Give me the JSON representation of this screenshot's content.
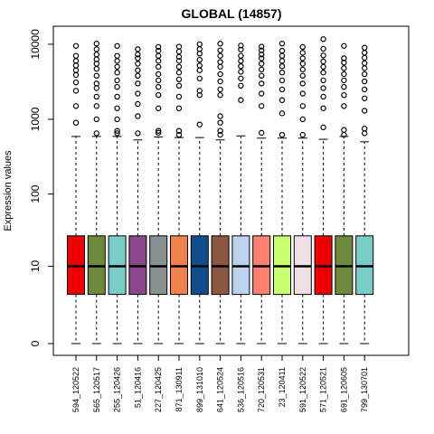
{
  "chart_data": {
    "type": "box",
    "title": "GLOBAL (14857)",
    "ylabel": "Expression values",
    "xlabel": "",
    "y_scale": "log1p",
    "yticks": [
      0,
      10,
      100,
      1000,
      10000
    ],
    "ytick_labels": [
      "0",
      "10",
      "100",
      "1000",
      "10000"
    ],
    "legend": "none",
    "grid": false,
    "categories": [
      "594_120522",
      "565_120517",
      "255_120426",
      "51_120416",
      "227_120425",
      "871_130911",
      "899_131010",
      "641_120524",
      "536_120516",
      "720_120531",
      "23_120411",
      "591_120522",
      "571_120521",
      "691_120605",
      "799_130701"
    ],
    "colors": [
      "#ee0000",
      "#6e8b3d",
      "#7accc8",
      "#8b4789",
      "#8a9193",
      "#f0804c",
      "#104e8b",
      "#8b5742",
      "#bcd2ee",
      "#fa8072",
      "#caff70",
      "#eee0e5",
      "#ee0000",
      "#6e8b3d",
      "#7accc8"
    ],
    "boxes": [
      {
        "min": 0,
        "q1": 3.6,
        "median": 10,
        "q3": 27,
        "max": 590,
        "outliers": [
          900,
          1500,
          2400,
          3100,
          3900,
          4500,
          5200,
          6000,
          7000,
          9500
        ]
      },
      {
        "min": 0,
        "q1": 3.6,
        "median": 10,
        "q3": 27,
        "max": 590,
        "outliers": [
          650,
          1000,
          1500,
          2000,
          2600,
          3000,
          3800,
          4700,
          5500,
          6300,
          7300,
          8600,
          10200
        ]
      },
      {
        "min": 0,
        "q1": 3.6,
        "median": 10,
        "q3": 27,
        "max": 590,
        "outliers": [
          650,
          700,
          1000,
          1400,
          2000,
          2700,
          3300,
          4200,
          5000,
          6000,
          7000,
          9500
        ]
      },
      {
        "min": 0,
        "q1": 3.6,
        "median": 10,
        "q3": 27,
        "max": 530,
        "outliers": [
          650,
          1100,
          1600,
          2200,
          3000,
          3800,
          4500,
          5500,
          6500,
          7300,
          8600
        ]
      },
      {
        "min": 0,
        "q1": 3.6,
        "median": 10,
        "q3": 27,
        "max": 580,
        "outliers": [
          660,
          700,
          1400,
          2100,
          2700,
          3300,
          4000,
          5000,
          6000,
          7000,
          8200,
          9200
        ]
      },
      {
        "min": 0,
        "q1": 3.6,
        "median": 10,
        "q3": 27,
        "max": 570,
        "outliers": [
          620,
          700,
          1400,
          2000,
          2800,
          3400,
          4200,
          5000,
          6000,
          6800,
          8000,
          9300
        ]
      },
      {
        "min": 0,
        "q1": 3.6,
        "median": 10,
        "q3": 27,
        "max": 570,
        "outliers": [
          850,
          2100,
          2400,
          3500,
          4500,
          5200,
          6200,
          7500,
          8600,
          10000
        ]
      },
      {
        "min": 0,
        "q1": 3.6,
        "median": 10,
        "q3": 27,
        "max": 530,
        "outliers": [
          620,
          700,
          900,
          1100,
          2100,
          2500,
          3200,
          4000,
          5000,
          5800,
          7000,
          8300,
          10200
        ]
      },
      {
        "min": 0,
        "q1": 3.6,
        "median": 10,
        "q3": 27,
        "max": 600,
        "outliers": [
          1800,
          2800,
          3500,
          4300,
          5100,
          6000,
          7000,
          8500,
          9600
        ]
      },
      {
        "min": 0,
        "q1": 3.6,
        "median": 10,
        "q3": 27,
        "max": 560,
        "outliers": [
          660,
          1500,
          2200,
          3000,
          3800,
          4600,
          5500,
          6500,
          7300,
          8300,
          9300
        ]
      },
      {
        "min": 0,
        "q1": 3.6,
        "median": 10,
        "q3": 27,
        "max": 560,
        "outliers": [
          620,
          1200,
          1800,
          2500,
          3300,
          4200,
          5100,
          6000,
          7000,
          8200,
          10200
        ]
      },
      {
        "min": 0,
        "q1": 3.6,
        "median": 10,
        "q3": 27,
        "max": 560,
        "outliers": [
          620,
          1000,
          1500,
          2200,
          3000,
          3800,
          4600,
          5500,
          6500,
          7700,
          9200
        ]
      },
      {
        "min": 0,
        "q1": 3.6,
        "median": 10,
        "q3": 27,
        "max": 540,
        "outliers": [
          780,
          1400,
          2000,
          2600,
          3300,
          4200,
          5000,
          5900,
          7100,
          8700,
          11700
        ]
      },
      {
        "min": 0,
        "q1": 3.6,
        "median": 10,
        "q3": 27,
        "max": 590,
        "outliers": [
          620,
          720,
          1500,
          2100,
          2700,
          3300,
          4000,
          4800,
          5700,
          6500,
          9500
        ]
      },
      {
        "min": 0,
        "q1": 3.6,
        "median": 10,
        "q3": 27,
        "max": 500,
        "outliers": [
          650,
          750,
          1300,
          1900,
          2500,
          3200,
          4000,
          4800,
          5600,
          6600,
          7700,
          9000
        ]
      }
    ]
  }
}
